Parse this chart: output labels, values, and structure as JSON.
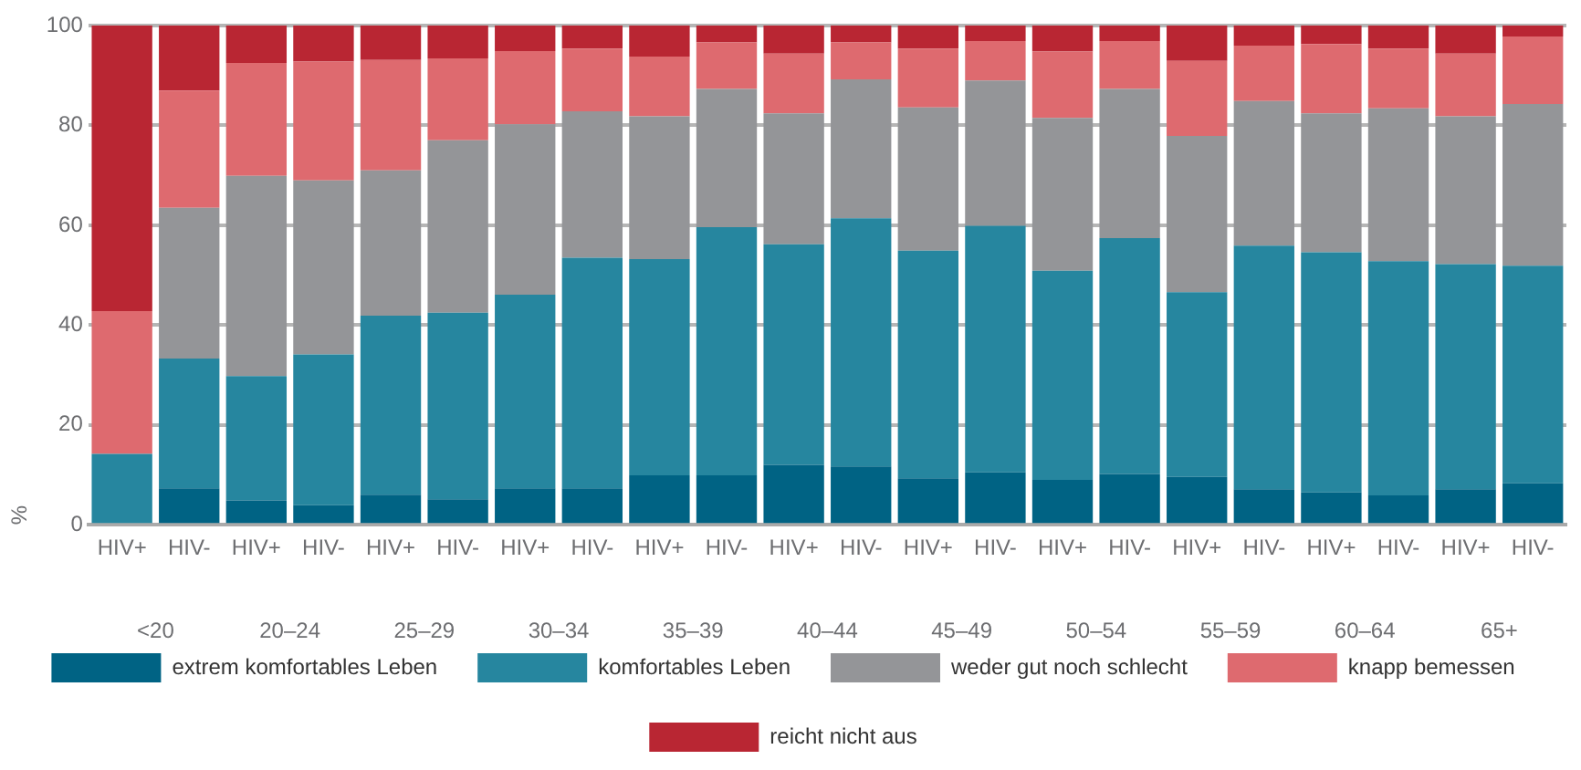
{
  "chart_data": {
    "type": "bar",
    "stacked": true,
    "ylabel": "%",
    "categories": [
      "HIV+",
      "HIV-",
      "HIV+",
      "HIV-",
      "HIV+",
      "HIV-",
      "HIV+",
      "HIV-",
      "HIV+",
      "HIV-",
      "HIV+",
      "HIV-",
      "HIV+",
      "HIV-",
      "HIV+",
      "HIV-",
      "HIV+",
      "HIV-",
      "HIV+",
      "HIV-",
      "HIV+",
      "HIV-"
    ],
    "annotations": [
      "<20",
      "20–24",
      "25–29",
      "30–34",
      "35–39",
      "40–44",
      "45–49",
      "50–54",
      "55–59",
      "60–64",
      "65+"
    ],
    "series": [
      {
        "name": "extrem komfortables Leben",
        "color": "#006384",
        "values": [
          0,
          7.3,
          4.9,
          3.9,
          6.0,
          5.1,
          7.3,
          7.3,
          9.9,
          9.9,
          12.0,
          11.7,
          9.3,
          10.5,
          9.0,
          10.2,
          9.6,
          7.1,
          6.5,
          5.9,
          7.1,
          8.3
        ]
      },
      {
        "name": "komfortables Leben",
        "color": "#26869f",
        "values": [
          14.2,
          26.0,
          24.9,
          30.2,
          35.9,
          37.4,
          38.8,
          46.2,
          43.3,
          49.7,
          44.2,
          49.7,
          45.6,
          49.4,
          41.9,
          47.2,
          37.0,
          48.8,
          48.1,
          46.9,
          45.1,
          43.6
        ]
      },
      {
        "name": "weder gut noch schlecht",
        "color": "#949598",
        "values": [
          0,
          30.2,
          40.1,
          34.9,
          29.1,
          34.5,
          34.1,
          29.3,
          28.6,
          27.7,
          26.2,
          27.8,
          28.7,
          29.1,
          30.6,
          29.9,
          31.3,
          29.0,
          27.8,
          30.6,
          29.6,
          32.4
        ]
      },
      {
        "name": "knapp bemessen",
        "color": "#de6a6f",
        "values": [
          28.6,
          23.5,
          22.6,
          23.8,
          22.1,
          16.4,
          14.7,
          12.6,
          12.0,
          9.3,
          12.0,
          7.4,
          11.8,
          7.9,
          13.3,
          9.6,
          15.0,
          11.1,
          13.9,
          12.0,
          12.6,
          13.5
        ]
      },
      {
        "name": "reicht nicht aus",
        "color": "#b92633",
        "values": [
          57.2,
          13.0,
          7.5,
          7.2,
          6.9,
          6.6,
          5.1,
          4.6,
          6.2,
          3.4,
          5.6,
          3.4,
          4.6,
          3.1,
          5.2,
          3.1,
          7.1,
          4.0,
          3.7,
          4.6,
          5.6,
          2.2
        ]
      }
    ],
    "ylim": [
      0,
      100
    ],
    "yticks": [
      0,
      20,
      40,
      60,
      80,
      100
    ],
    "grid": "y",
    "legend": "bottom"
  }
}
